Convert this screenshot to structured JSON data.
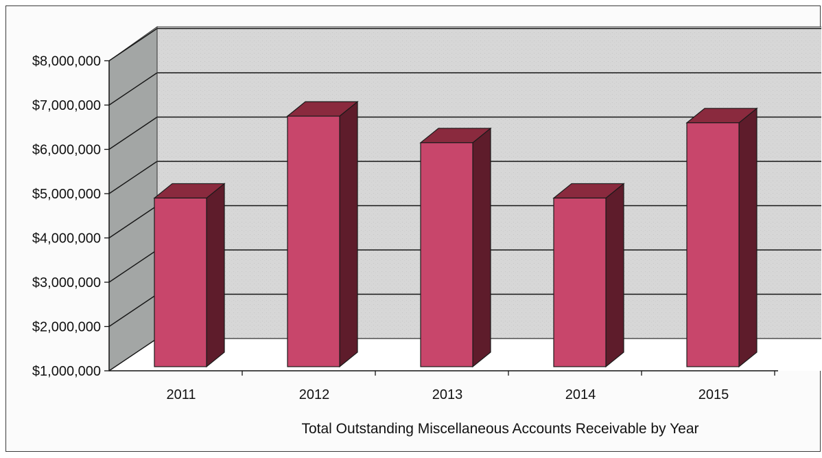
{
  "chart_data": {
    "type": "bar",
    "style": "3d-column",
    "categories": [
      "2011",
      "2012",
      "2013",
      "2014",
      "2015"
    ],
    "values": [
      4900000,
      6750000,
      6150000,
      4900000,
      6600000
    ],
    "y_tick_labels": [
      "$1,000,000",
      "$2,000,000",
      "$3,000,000",
      "$4,000,000",
      "$5,000,000",
      "$6,000,000",
      "$7,000,000",
      "$8,000,000"
    ],
    "ylim": [
      1000000,
      8000000
    ],
    "xlabel": "Total Outstanding Miscellaneous Accounts Receivable by Year",
    "ylabel": "",
    "grid": true,
    "legend": "none",
    "colors": {
      "bar_front": "#c8466b",
      "bar_top": "#8a2a3e",
      "bar_side": "#5e1c2b",
      "back_wall": "#d7d7d7",
      "side_wall": "#a3a6a5",
      "floor": "#ffffff",
      "gridline": "#151515"
    }
  }
}
